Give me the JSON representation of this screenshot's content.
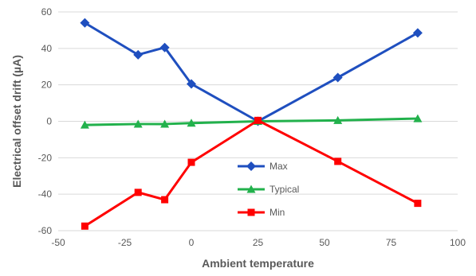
{
  "chart_data": {
    "type": "line",
    "xlabel": "Ambient temperature",
    "ylabel": "Electrical offset drift (µA)",
    "xlim": [
      -50,
      100
    ],
    "ylim": [
      -60,
      60
    ],
    "x_ticks": [
      "-50",
      "-25",
      "0",
      "25",
      "50",
      "75",
      "100"
    ],
    "y_ticks": [
      "-60",
      "-40",
      "-20",
      "0",
      "20",
      "40",
      "60"
    ],
    "grid": "horizontal",
    "legend_position": "center-right",
    "series": [
      {
        "name": "Max",
        "color": "#1f4fbf",
        "marker": "diamond",
        "points": [
          [
            -40,
            54
          ],
          [
            -20,
            36.5
          ],
          [
            -10,
            40.5
          ],
          [
            0,
            20.5
          ],
          [
            25,
            0
          ],
          [
            55,
            24
          ],
          [
            85,
            48.5
          ]
        ]
      },
      {
        "name": "Typical",
        "color": "#22b14c",
        "marker": "triangle",
        "points": [
          [
            -40,
            -2
          ],
          [
            -20,
            -1.5
          ],
          [
            -10,
            -1.5
          ],
          [
            0,
            -1
          ],
          [
            25,
            0
          ],
          [
            55,
            0.5
          ],
          [
            85,
            1.5
          ]
        ]
      },
      {
        "name": "Min",
        "color": "#ff0000",
        "marker": "square",
        "points": [
          [
            -40,
            -57.5
          ],
          [
            -20,
            -39
          ],
          [
            -10,
            -43
          ],
          [
            0,
            -22.5
          ],
          [
            25,
            0.5
          ],
          [
            55,
            -22
          ],
          [
            85,
            -45
          ]
        ]
      }
    ]
  }
}
